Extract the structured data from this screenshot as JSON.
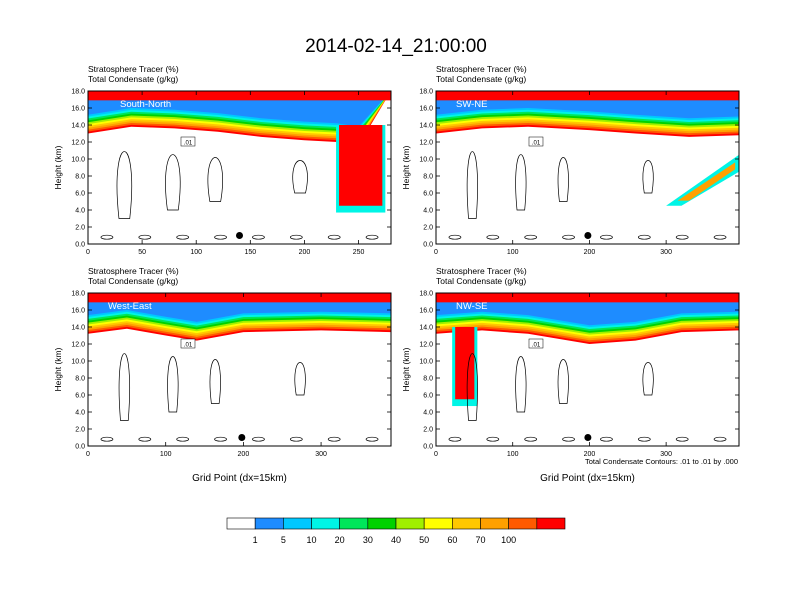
{
  "title": "2014-02-14_21:00:00",
  "footnote": "Total Condensate Contours: .01 to .01 by .000",
  "colorbar": {
    "colors": [
      "#ffffff",
      "#1e8cff",
      "#00c8ff",
      "#00f5e6",
      "#00e65a",
      "#00d200",
      "#a0f000",
      "#ffff00",
      "#ffc800",
      "#ffa000",
      "#ff5a00",
      "#ff0000"
    ],
    "tick_labels": [
      "1",
      "5",
      "10",
      "20",
      "30",
      "40",
      "50",
      "60",
      "70",
      "100"
    ]
  },
  "chart_data": [
    {
      "type": "heatmap",
      "label": "South-North",
      "title_lines": [
        "Stratosphere Tracer   (%)",
        "Total Condensate   (g/kg)"
      ],
      "ylabel": "Height (km)",
      "xlabel": "",
      "ylim": [
        0,
        18
      ],
      "xlim": [
        0,
        280
      ],
      "y_ticks": [
        "0.0",
        "2.0",
        "4.0",
        "6.0",
        "8.0",
        "10.0",
        "12.0",
        "14.0",
        "16.0",
        "18.0"
      ],
      "x_ticks": [
        0,
        50,
        100,
        150,
        200,
        250
      ],
      "tropopause_km": [
        [
          0,
          15.0
        ],
        [
          40,
          15.8
        ],
        [
          80,
          15.6
        ],
        [
          120,
          15.2
        ],
        [
          160,
          14.6
        ],
        [
          200,
          14.2
        ],
        [
          230,
          14.0
        ],
        [
          250,
          13.6
        ]
      ],
      "intrusion": {
        "x_min": 232,
        "x_max": 272,
        "bottom_km": 4.5
      },
      "marker": {
        "x": 140,
        "y_km": 1.0
      },
      "contour_label": ".01"
    },
    {
      "type": "heatmap",
      "label": "SW-NE",
      "title_lines": [
        "Stratosphere Tracer   (%)",
        "Total Condensate   (g/kg)"
      ],
      "ylabel": "Height (km)",
      "xlabel": "",
      "ylim": [
        0,
        18
      ],
      "xlim": [
        0,
        395
      ],
      "y_ticks": [
        "0.0",
        "2.0",
        "4.0",
        "6.0",
        "8.0",
        "10.0",
        "12.0",
        "14.0",
        "16.0",
        "18.0"
      ],
      "x_ticks": [
        0,
        100,
        200,
        300
      ],
      "tropopause_km": [
        [
          0,
          15.0
        ],
        [
          60,
          15.6
        ],
        [
          120,
          15.8
        ],
        [
          200,
          15.4
        ],
        [
          260,
          15.0
        ],
        [
          330,
          14.6
        ],
        [
          395,
          14.8
        ]
      ],
      "fold": {
        "x_min": 300,
        "x_max": 395,
        "bottom_km": 4.5
      },
      "marker": {
        "x": 198,
        "y_km": 1.0
      },
      "contour_label": ".01"
    },
    {
      "type": "heatmap",
      "label": "West-East",
      "title_lines": [
        "Stratosphere Tracer   (%)",
        "Total Condensate   (g/kg)"
      ],
      "ylabel": "Height (km)",
      "xlabel": "Grid Point (dx=15km)",
      "ylim": [
        0,
        18
      ],
      "xlim": [
        0,
        390
      ],
      "y_ticks": [
        "0.0",
        "2.0",
        "4.0",
        "6.0",
        "8.0",
        "10.0",
        "12.0",
        "14.0",
        "16.0",
        "18.0"
      ],
      "x_ticks": [
        0,
        100,
        200,
        300
      ],
      "tropopause_km": [
        [
          0,
          15.2
        ],
        [
          50,
          15.8
        ],
        [
          100,
          15.0
        ],
        [
          140,
          14.4
        ],
        [
          200,
          15.4
        ],
        [
          300,
          15.6
        ],
        [
          390,
          15.4
        ]
      ],
      "marker": {
        "x": 198,
        "y_km": 1.0
      },
      "contour_label": ".01"
    },
    {
      "type": "heatmap",
      "label": "NW-SE",
      "title_lines": [
        "Stratosphere Tracer   (%)",
        "Total Condensate   (g/kg)"
      ],
      "ylabel": "Height (km)",
      "xlabel": "Grid Point (dx=15km)",
      "ylim": [
        0,
        18
      ],
      "xlim": [
        0,
        395
      ],
      "y_ticks": [
        "0.0",
        "2.0",
        "4.0",
        "6.0",
        "8.0",
        "10.0",
        "12.0",
        "14.0",
        "16.0",
        "18.0"
      ],
      "x_ticks": [
        0,
        100,
        200,
        300
      ],
      "tropopause_km": [
        [
          0,
          15.2
        ],
        [
          60,
          15.6
        ],
        [
          120,
          15.2
        ],
        [
          200,
          14.0
        ],
        [
          260,
          14.4
        ],
        [
          320,
          15.4
        ],
        [
          395,
          15.6
        ]
      ],
      "intrusion": {
        "x_min": 25,
        "x_max": 50,
        "bottom_km": 5.5
      },
      "marker": {
        "x": 198,
        "y_km": 1.0
      },
      "contour_label": ".01"
    }
  ]
}
